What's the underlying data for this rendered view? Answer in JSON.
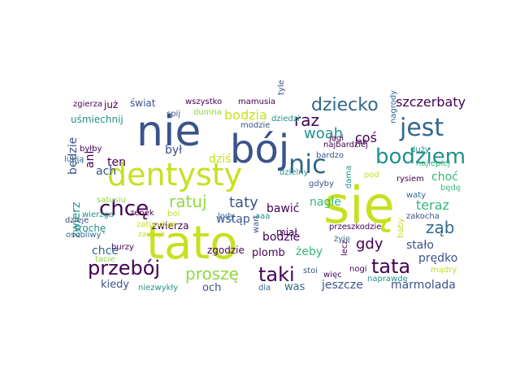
{
  "palette": {
    "dark_purple": "#440154",
    "indigo": "#3b528b",
    "blue": "#31688e",
    "teal": "#21918c",
    "green": "#35b779",
    "lime": "#90d743",
    "yellow": "#c8e020"
  },
  "words": [
    {
      "text": "się",
      "color": "#c8e020"
    },
    {
      "text": "tato",
      "color": "#c8e020"
    },
    {
      "text": "nie",
      "color": "#3b528b"
    },
    {
      "text": "bój",
      "color": "#3b528b"
    },
    {
      "text": "dentysty",
      "color": "#c8e020"
    },
    {
      "text": "jest",
      "color": "#31688e"
    },
    {
      "text": "nic",
      "color": "#31688e"
    },
    {
      "text": "bodziem",
      "color": "#21918c"
    },
    {
      "text": "chcę",
      "color": "#440154"
    },
    {
      "text": "przebój",
      "color": "#440154"
    },
    {
      "text": "tata",
      "color": "#440154"
    },
    {
      "text": "taki",
      "color": "#440154"
    },
    {
      "text": "dziecko",
      "color": "#31688e"
    },
    {
      "text": "ratuj",
      "color": "#90d743"
    },
    {
      "text": "proszę",
      "color": "#90d743"
    },
    {
      "text": "raz",
      "color": "#440154"
    },
    {
      "text": "woah",
      "color": "#21918c"
    },
    {
      "text": "ząb",
      "color": "#31688e"
    },
    {
      "text": "taty",
      "color": "#3b528b"
    },
    {
      "text": "gdy",
      "color": "#440154"
    },
    {
      "text": "szczerbaty",
      "color": "#440154"
    },
    {
      "text": "bodzia",
      "color": "#c8e020"
    },
    {
      "text": "coś",
      "color": "#440154"
    },
    {
      "text": "teraz",
      "color": "#35b779"
    },
    {
      "text": "jeszcze",
      "color": "#3b528b"
    },
    {
      "text": "marmolada",
      "color": "#3b528b"
    },
    {
      "text": "zwierz",
      "color": "#21918c"
    },
    {
      "text": "ani",
      "color": "#440154"
    },
    {
      "text": "będzie",
      "color": "#3b528b"
    },
    {
      "text": "ach",
      "color": "#3b528b"
    },
    {
      "text": "ten",
      "color": "#440154"
    },
    {
      "text": "był",
      "color": "#3b528b"
    },
    {
      "text": "dziś",
      "color": "#c8e020"
    },
    {
      "text": "bawić",
      "color": "#440154"
    },
    {
      "text": "nagle",
      "color": "#35b779"
    },
    {
      "text": "choć",
      "color": "#35b779"
    },
    {
      "text": "wstąp",
      "color": "#3b528b"
    },
    {
      "text": "bodzie",
      "color": "#440154"
    },
    {
      "text": "stało",
      "color": "#3b528b"
    },
    {
      "text": "prędko",
      "color": "#3b528b"
    },
    {
      "text": "żeby",
      "color": "#35b779"
    },
    {
      "text": "chce",
      "color": "#31688e"
    },
    {
      "text": "kiedy",
      "color": "#3b528b"
    },
    {
      "text": "och",
      "color": "#3b528b"
    },
    {
      "text": "was",
      "color": "#31688e"
    },
    {
      "text": "plomb",
      "color": "#440154"
    },
    {
      "text": "zgodzie",
      "color": "#440154"
    },
    {
      "text": "trochę",
      "color": "#21918c"
    },
    {
      "text": "zwierza",
      "color": "#440154"
    },
    {
      "text": "miał",
      "color": "#440154"
    },
    {
      "text": "już",
      "color": "#440154"
    },
    {
      "text": "świat",
      "color": "#3b528b"
    },
    {
      "text": "uśmiechnij",
      "color": "#21918c"
    },
    {
      "text": "zgierza",
      "color": "#440154"
    },
    {
      "text": "wszystko",
      "color": "#440154"
    },
    {
      "text": "mamusia",
      "color": "#440154"
    },
    {
      "text": "tyle",
      "color": "#3b528b"
    },
    {
      "text": "dziedzi",
      "color": "#21918c"
    },
    {
      "text": "spij",
      "color": "#3b528b"
    },
    {
      "text": "dumna",
      "color": "#90d743"
    },
    {
      "text": "modzie",
      "color": "#3b528b"
    },
    {
      "text": "byłby",
      "color": "#440154"
    },
    {
      "text": "lubią",
      "color": "#31688e"
    },
    {
      "text": "najbardziej",
      "color": "#440154"
    },
    {
      "text": "bardzo",
      "color": "#3b528b"
    },
    {
      "text": "jagi",
      "color": "#440154"
    },
    {
      "text": "jak",
      "color": "#440154"
    },
    {
      "text": "nagrody",
      "color": "#31688e"
    },
    {
      "text": "duży",
      "color": "#21918c"
    },
    {
      "text": "najlepiej",
      "color": "#35b779"
    },
    {
      "text": "dzielny",
      "color": "#21918c"
    },
    {
      "text": "gdyby",
      "color": "#3b528b"
    },
    {
      "text": "rysiem",
      "color": "#440154"
    },
    {
      "text": "będę",
      "color": "#35b779"
    },
    {
      "text": "waty",
      "color": "#31688e"
    },
    {
      "text": "pod",
      "color": "#c8e020"
    },
    {
      "text": "dama",
      "color": "#21918c"
    },
    {
      "text": "przeszkodzie",
      "color": "#440154"
    },
    {
      "text": "zakocha",
      "color": "#3b528b"
    },
    {
      "text": "wierzga",
      "color": "#21918c"
    },
    {
      "text": "zenek",
      "color": "#440154"
    },
    {
      "text": "boi",
      "color": "#c8e020"
    },
    {
      "text": "dzieje",
      "color": "#3b528b"
    },
    {
      "text": "zatunduje",
      "color": "#c8e020"
    },
    {
      "text": "zaufuje",
      "color": "#c8e020"
    },
    {
      "text": "satusiu",
      "color": "#90d743"
    },
    {
      "text": "osobliwy",
      "color": "#31688e"
    },
    {
      "text": "burzy",
      "color": "#440154"
    },
    {
      "text": "tacie",
      "color": "#90d743"
    },
    {
      "text": "lody",
      "color": "#31688e"
    },
    {
      "text": "aaa",
      "color": "#21918c"
    },
    {
      "text": "wart",
      "color": "#3b528b"
    },
    {
      "text": "stoi",
      "color": "#3b528b"
    },
    {
      "text": "lecz",
      "color": "#440154"
    },
    {
      "text": "żyję",
      "color": "#31688e"
    },
    {
      "text": "nogi",
      "color": "#440154"
    },
    {
      "text": "więc",
      "color": "#440154"
    },
    {
      "text": "naprawdę",
      "color": "#21918c"
    },
    {
      "text": "baby",
      "color": "#c8e020"
    },
    {
      "text": "mądry",
      "color": "#c8e020"
    },
    {
      "text": "niezwykły",
      "color": "#21918c"
    },
    {
      "text": "dla",
      "color": "#31688e"
    }
  ]
}
